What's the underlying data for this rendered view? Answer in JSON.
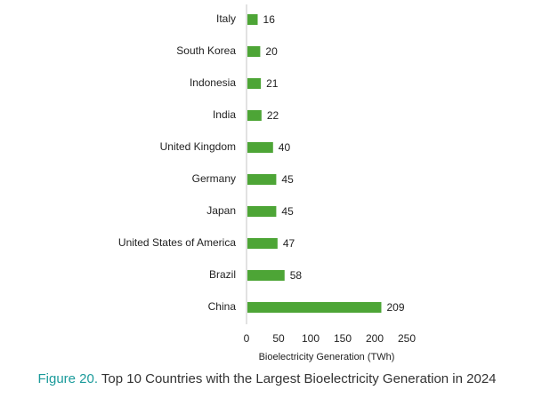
{
  "chart_data": {
    "type": "bar",
    "orientation": "horizontal",
    "categories": [
      "Italy",
      "South Korea",
      "Indonesia",
      "India",
      "United Kingdom",
      "Germany",
      "Japan",
      "United States of America",
      "Brazil",
      "China"
    ],
    "values": [
      16,
      20,
      21,
      22,
      40,
      45,
      45,
      47,
      58,
      209
    ],
    "xlabel": "Bioelectricity Generation (TWh)",
    "ylabel": "",
    "xlim": [
      0,
      250
    ],
    "xticks": [
      0,
      50,
      100,
      150,
      200,
      250
    ],
    "grid": false,
    "bar_color": "#4da536"
  },
  "caption": {
    "label": "Figure 20.",
    "text": " Top 10 Countries with the Largest Bioelectricity Generation in 2024",
    "label_color": "#1b9b9b"
  }
}
